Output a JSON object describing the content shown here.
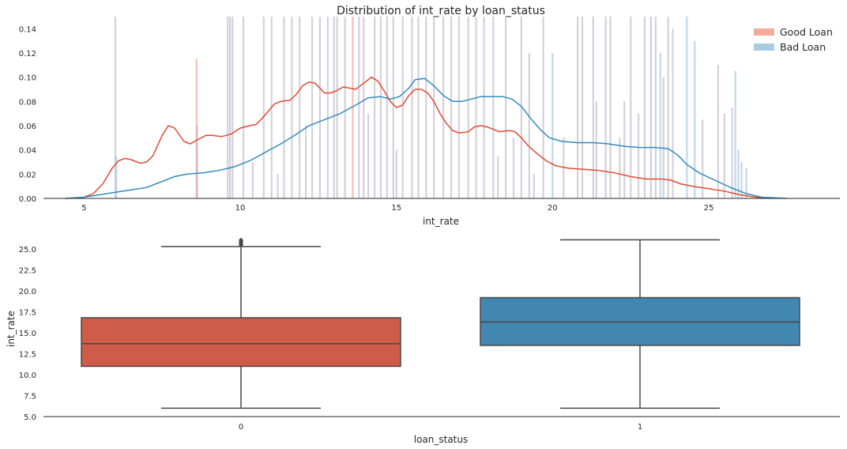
{
  "chart_data": [
    {
      "type": "histogram+kde",
      "title": "Distribution of int_rate by loan_status",
      "xlabel": "int_rate",
      "ylabel": "",
      "xlim": [
        3.7,
        29.2
      ],
      "ylim": [
        0,
        0.15
      ],
      "xticks": [
        5,
        10,
        15,
        20,
        25
      ],
      "yticks": [
        0.0,
        0.02,
        0.04,
        0.06,
        0.08,
        0.1,
        0.12,
        0.14
      ],
      "ytick_labels": [
        "0.00",
        "0.02",
        "0.04",
        "0.06",
        "0.08",
        "0.10",
        "0.12",
        "0.14"
      ],
      "legend": {
        "position": "top-right",
        "entries": [
          "Good Loan",
          "Bad Loan"
        ]
      },
      "colors": {
        "good": "#e24a33",
        "bad": "#348abd",
        "good_hist": "#f4a99a",
        "bad_hist": "#a8cbe4",
        "overlap": "#b0aac0"
      },
      "series": [
        {
          "name": "Good Loan",
          "kde": [
            [
              4.4,
              0
            ],
            [
              5,
              0.001
            ],
            [
              5.3,
              0.004
            ],
            [
              5.6,
              0.012
            ],
            [
              5.9,
              0.025
            ],
            [
              6.1,
              0.031
            ],
            [
              6.3,
              0.033
            ],
            [
              6.5,
              0.032
            ],
            [
              6.8,
              0.029
            ],
            [
              7,
              0.03
            ],
            [
              7.2,
              0.035
            ],
            [
              7.5,
              0.052
            ],
            [
              7.7,
              0.06
            ],
            [
              7.9,
              0.058
            ],
            [
              8.2,
              0.047
            ],
            [
              8.4,
              0.045
            ],
            [
              8.6,
              0.048
            ],
            [
              8.9,
              0.052
            ],
            [
              9.1,
              0.052
            ],
            [
              9.4,
              0.051
            ],
            [
              9.7,
              0.053
            ],
            [
              10,
              0.058
            ],
            [
              10.3,
              0.06
            ],
            [
              10.5,
              0.061
            ],
            [
              10.7,
              0.066
            ],
            [
              10.9,
              0.072
            ],
            [
              11.1,
              0.078
            ],
            [
              11.3,
              0.08
            ],
            [
              11.6,
              0.081
            ],
            [
              11.8,
              0.086
            ],
            [
              12,
              0.093
            ],
            [
              12.2,
              0.096
            ],
            [
              12.4,
              0.095
            ],
            [
              12.7,
              0.087
            ],
            [
              12.9,
              0.087
            ],
            [
              13.1,
              0.089
            ],
            [
              13.3,
              0.092
            ],
            [
              13.5,
              0.091
            ],
            [
              13.7,
              0.09
            ],
            [
              14,
              0.096
            ],
            [
              14.2,
              0.1
            ],
            [
              14.4,
              0.097
            ],
            [
              14.6,
              0.089
            ],
            [
              14.8,
              0.08
            ],
            [
              15,
              0.075
            ],
            [
              15.2,
              0.077
            ],
            [
              15.4,
              0.085
            ],
            [
              15.6,
              0.09
            ],
            [
              15.8,
              0.09
            ],
            [
              16,
              0.087
            ],
            [
              16.2,
              0.08
            ],
            [
              16.4,
              0.07
            ],
            [
              16.6,
              0.062
            ],
            [
              16.8,
              0.056
            ],
            [
              17,
              0.054
            ],
            [
              17.3,
              0.055
            ],
            [
              17.5,
              0.059
            ],
            [
              17.7,
              0.06
            ],
            [
              17.9,
              0.059
            ],
            [
              18.1,
              0.057
            ],
            [
              18.3,
              0.055
            ],
            [
              18.6,
              0.056
            ],
            [
              18.8,
              0.055
            ],
            [
              19,
              0.05
            ],
            [
              19.2,
              0.044
            ],
            [
              19.5,
              0.037
            ],
            [
              19.8,
              0.031
            ],
            [
              20.1,
              0.027
            ],
            [
              20.5,
              0.025
            ],
            [
              21,
              0.024
            ],
            [
              21.5,
              0.023
            ],
            [
              22,
              0.021
            ],
            [
              22.5,
              0.018
            ],
            [
              23,
              0.016
            ],
            [
              23.5,
              0.016
            ],
            [
              23.8,
              0.015
            ],
            [
              24.1,
              0.012
            ],
            [
              24.5,
              0.01
            ],
            [
              25,
              0.008
            ],
            [
              25.5,
              0.006
            ],
            [
              26,
              0.003
            ],
            [
              26.5,
              0.001
            ],
            [
              27,
              0
            ]
          ]
        },
        {
          "name": "Bad Loan",
          "kde": [
            [
              4.4,
              0
            ],
            [
              5,
              0.001
            ],
            [
              5.5,
              0.003
            ],
            [
              6,
              0.005
            ],
            [
              6.5,
              0.007
            ],
            [
              7,
              0.009
            ],
            [
              7.5,
              0.014
            ],
            [
              7.9,
              0.018
            ],
            [
              8.3,
              0.02
            ],
            [
              8.8,
              0.021
            ],
            [
              9.3,
              0.023
            ],
            [
              9.8,
              0.026
            ],
            [
              10.3,
              0.031
            ],
            [
              10.8,
              0.038
            ],
            [
              11.3,
              0.045
            ],
            [
              11.8,
              0.053
            ],
            [
              12.2,
              0.06
            ],
            [
              12.7,
              0.065
            ],
            [
              13.2,
              0.07
            ],
            [
              13.7,
              0.077
            ],
            [
              14.1,
              0.083
            ],
            [
              14.5,
              0.084
            ],
            [
              14.8,
              0.082
            ],
            [
              15.1,
              0.084
            ],
            [
              15.4,
              0.091
            ],
            [
              15.6,
              0.098
            ],
            [
              15.9,
              0.099
            ],
            [
              16.2,
              0.093
            ],
            [
              16.5,
              0.085
            ],
            [
              16.8,
              0.08
            ],
            [
              17.1,
              0.08
            ],
            [
              17.4,
              0.082
            ],
            [
              17.7,
              0.084
            ],
            [
              18,
              0.084
            ],
            [
              18.4,
              0.084
            ],
            [
              18.7,
              0.082
            ],
            [
              19,
              0.076
            ],
            [
              19.3,
              0.066
            ],
            [
              19.6,
              0.057
            ],
            [
              19.9,
              0.05
            ],
            [
              20.3,
              0.047
            ],
            [
              20.8,
              0.046
            ],
            [
              21.3,
              0.046
            ],
            [
              21.8,
              0.045
            ],
            [
              22.3,
              0.043
            ],
            [
              22.8,
              0.042
            ],
            [
              23.3,
              0.042
            ],
            [
              23.7,
              0.041
            ],
            [
              24,
              0.036
            ],
            [
              24.3,
              0.028
            ],
            [
              24.7,
              0.021
            ],
            [
              25.2,
              0.015
            ],
            [
              25.7,
              0.009
            ],
            [
              26.2,
              0.004
            ],
            [
              26.7,
              0.001
            ],
            [
              27.5,
              0
            ]
          ]
        }
      ],
      "histogram_bars_approx": [
        {
          "x": 6.0,
          "h": 0.15,
          "s": "o"
        },
        {
          "x": 6.03,
          "h": 0.035,
          "s": "b"
        },
        {
          "x": 8.6,
          "h": 0.115,
          "s": "g"
        },
        {
          "x": 8.62,
          "h": 0.06,
          "s": "o"
        },
        {
          "x": 9.6,
          "h": 0.15,
          "s": "o"
        },
        {
          "x": 9.67,
          "h": 0.15,
          "s": "o"
        },
        {
          "x": 9.75,
          "h": 0.15,
          "s": "o"
        },
        {
          "x": 10.1,
          "h": 0.15,
          "s": "o"
        },
        {
          "x": 10.4,
          "h": 0.03,
          "s": "o"
        },
        {
          "x": 10.75,
          "h": 0.15,
          "s": "o"
        },
        {
          "x": 11.0,
          "h": 0.15,
          "s": "o"
        },
        {
          "x": 11.2,
          "h": 0.02,
          "s": "o"
        },
        {
          "x": 11.4,
          "h": 0.15,
          "s": "o"
        },
        {
          "x": 11.65,
          "h": 0.15,
          "s": "o"
        },
        {
          "x": 11.9,
          "h": 0.15,
          "s": "o"
        },
        {
          "x": 12.1,
          "h": 0.06,
          "s": "o"
        },
        {
          "x": 12.3,
          "h": 0.15,
          "s": "o"
        },
        {
          "x": 12.55,
          "h": 0.15,
          "s": "o"
        },
        {
          "x": 12.8,
          "h": 0.15,
          "s": "o"
        },
        {
          "x": 13.0,
          "h": 0.15,
          "s": "o"
        },
        {
          "x": 13.1,
          "h": 0.15,
          "s": "o"
        },
        {
          "x": 13.35,
          "h": 0.15,
          "s": "o"
        },
        {
          "x": 13.6,
          "h": 0.15,
          "s": "g"
        },
        {
          "x": 13.8,
          "h": 0.15,
          "s": "o"
        },
        {
          "x": 13.95,
          "h": 0.15,
          "s": "o"
        },
        {
          "x": 14.1,
          "h": 0.07,
          "s": "o"
        },
        {
          "x": 14.3,
          "h": 0.15,
          "s": "o"
        },
        {
          "x": 14.5,
          "h": 0.15,
          "s": "o"
        },
        {
          "x": 14.7,
          "h": 0.15,
          "s": "o"
        },
        {
          "x": 14.9,
          "h": 0.15,
          "s": "o"
        },
        {
          "x": 15.0,
          "h": 0.04,
          "s": "o"
        },
        {
          "x": 15.2,
          "h": 0.15,
          "s": "o"
        },
        {
          "x": 15.5,
          "h": 0.15,
          "s": "o"
        },
        {
          "x": 15.7,
          "h": 0.15,
          "s": "o"
        },
        {
          "x": 15.95,
          "h": 0.15,
          "s": "o"
        },
        {
          "x": 16.2,
          "h": 0.15,
          "s": "o"
        },
        {
          "x": 16.5,
          "h": 0.15,
          "s": "o"
        },
        {
          "x": 16.75,
          "h": 0.15,
          "s": "o"
        },
        {
          "x": 17.0,
          "h": 0.15,
          "s": "o"
        },
        {
          "x": 17.3,
          "h": 0.15,
          "s": "o"
        },
        {
          "x": 17.55,
          "h": 0.15,
          "s": "o"
        },
        {
          "x": 17.8,
          "h": 0.15,
          "s": "o"
        },
        {
          "x": 18.1,
          "h": 0.15,
          "s": "o"
        },
        {
          "x": 18.25,
          "h": 0.035,
          "s": "o"
        },
        {
          "x": 18.5,
          "h": 0.15,
          "s": "o"
        },
        {
          "x": 18.75,
          "h": 0.05,
          "s": "o"
        },
        {
          "x": 19.0,
          "h": 0.15,
          "s": "o"
        },
        {
          "x": 19.25,
          "h": 0.12,
          "s": "o"
        },
        {
          "x": 19.4,
          "h": 0.02,
          "s": "o"
        },
        {
          "x": 19.7,
          "h": 0.15,
          "s": "o"
        },
        {
          "x": 20.0,
          "h": 0.12,
          "s": "b"
        },
        {
          "x": 20.35,
          "h": 0.05,
          "s": "o"
        },
        {
          "x": 20.8,
          "h": 0.15,
          "s": "o"
        },
        {
          "x": 20.95,
          "h": 0.15,
          "s": "o"
        },
        {
          "x": 21.3,
          "h": 0.15,
          "s": "o"
        },
        {
          "x": 21.4,
          "h": 0.08,
          "s": "o"
        },
        {
          "x": 21.7,
          "h": 0.15,
          "s": "o"
        },
        {
          "x": 21.85,
          "h": 0.15,
          "s": "o"
        },
        {
          "x": 22.15,
          "h": 0.05,
          "s": "o"
        },
        {
          "x": 22.3,
          "h": 0.08,
          "s": "o"
        },
        {
          "x": 22.5,
          "h": 0.15,
          "s": "o"
        },
        {
          "x": 22.75,
          "h": 0.07,
          "s": "o"
        },
        {
          "x": 22.95,
          "h": 0.15,
          "s": "o"
        },
        {
          "x": 23.15,
          "h": 0.15,
          "s": "o"
        },
        {
          "x": 23.3,
          "h": 0.15,
          "s": "o"
        },
        {
          "x": 23.45,
          "h": 0.12,
          "s": "b"
        },
        {
          "x": 23.55,
          "h": 0.1,
          "s": "o"
        },
        {
          "x": 23.7,
          "h": 0.15,
          "s": "o"
        },
        {
          "x": 23.85,
          "h": 0.14,
          "s": "o"
        },
        {
          "x": 24.3,
          "h": 0.15,
          "s": "b"
        },
        {
          "x": 24.55,
          "h": 0.13,
          "s": "b"
        },
        {
          "x": 24.8,
          "h": 0.065,
          "s": "o"
        },
        {
          "x": 25.3,
          "h": 0.11,
          "s": "o"
        },
        {
          "x": 25.5,
          "h": 0.07,
          "s": "o"
        },
        {
          "x": 25.75,
          "h": 0.075,
          "s": "o"
        },
        {
          "x": 25.85,
          "h": 0.105,
          "s": "b"
        },
        {
          "x": 25.95,
          "h": 0.04,
          "s": "b"
        },
        {
          "x": 26.05,
          "h": 0.03,
          "s": "o"
        },
        {
          "x": 26.2,
          "h": 0.025,
          "s": "b"
        }
      ]
    },
    {
      "type": "boxplot",
      "xlabel": "loan_status",
      "ylabel": "int_rate",
      "ylim": [
        5.0,
        26.8
      ],
      "yticks": [
        5.0,
        7.5,
        10.0,
        12.5,
        15.0,
        17.5,
        20.0,
        22.5,
        25.0
      ],
      "ytick_labels": [
        "5.0",
        "7.5",
        "10.0",
        "12.5",
        "15.0",
        "17.5",
        "20.0",
        "22.5",
        "25.0"
      ],
      "categories": [
        "0",
        "1"
      ],
      "boxes": [
        {
          "category": "0",
          "min": 6.0,
          "q1": 11.0,
          "median": 13.7,
          "q3": 16.8,
          "max": 25.3,
          "color": "#ce5c48",
          "outliers": [
            25.4,
            25.5,
            25.6,
            25.7,
            25.8,
            25.9,
            26.0,
            26.1
          ]
        },
        {
          "category": "1",
          "min": 6.0,
          "q1": 13.5,
          "median": 16.3,
          "q3": 19.2,
          "max": 26.1,
          "color": "#4287b0",
          "outliers": []
        }
      ]
    }
  ]
}
